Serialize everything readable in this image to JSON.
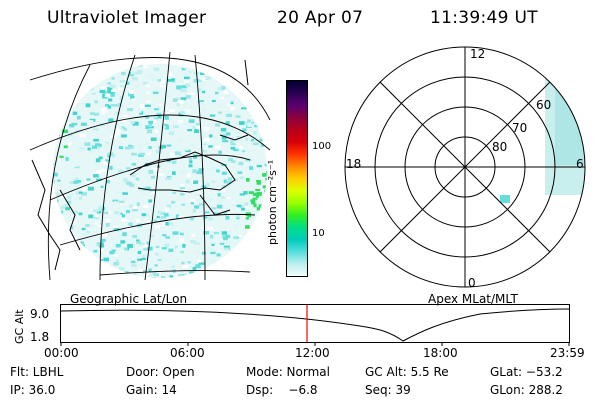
{
  "header": {
    "instrument": "Ultraviolet Imager",
    "date": "20 Apr 07",
    "time": "11:39:49 UT"
  },
  "colorbar": {
    "unit_label": "photon cm⁻²s⁻¹",
    "ticks": [
      "100",
      "10"
    ],
    "colors": [
      "#000033",
      "#2a0050",
      "#5a0070",
      "#8b0040",
      "#b8001a",
      "#d8000a",
      "#ff3300",
      "#ff8800",
      "#ffcc00",
      "#ddff00",
      "#99ff00",
      "#33ee22",
      "#00dd88",
      "#00ccbb",
      "#55dddd",
      "#bbeeee",
      "#f2fbfb"
    ]
  },
  "left_panel": {
    "caption": "Geographic Lat/Lon"
  },
  "right_panel": {
    "caption": "Apex  MLat/MLT",
    "hour_labels": [
      "12",
      "18",
      "6",
      "0"
    ],
    "lat_labels": [
      "60",
      "70",
      "80"
    ]
  },
  "altitude_plot": {
    "ylabel": "GC Alt",
    "y_ticks": [
      "9.0",
      "1.8"
    ],
    "x_ticks": [
      "00:00",
      "06:00",
      "12:00",
      "18:00",
      "23:59"
    ],
    "marker_color": "#ff0000"
  },
  "status": {
    "filter": "Flt: LBHL",
    "door": "Door: Open",
    "mode": "Mode: Normal",
    "gc_alt": "GC Alt: 5.5 Re",
    "glat": "GLat: −53.2",
    "ip": "IP: 36.0",
    "gain": "Gain: 14",
    "dsp": "Dsp:    −6.8",
    "seq": "Seq: 39",
    "glon": "GLon: 288.2"
  }
}
